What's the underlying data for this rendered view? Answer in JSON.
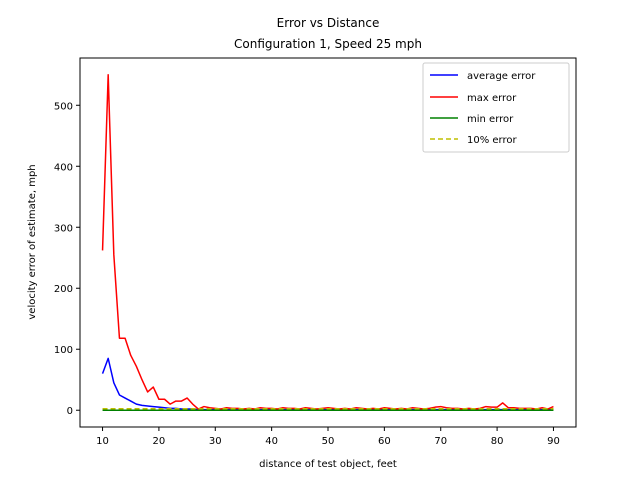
{
  "chart_data": {
    "type": "line",
    "title_line1": "Error vs Distance",
    "title_line2": "Configuration 1, Speed 25 mph",
    "xlabel": "distance of test object, feet",
    "ylabel": "velocity error of estimate, mph",
    "xlim": [
      6,
      94
    ],
    "ylim": [
      -27.5,
      577.5
    ],
    "xticks": [
      10,
      20,
      30,
      40,
      50,
      60,
      70,
      80,
      90
    ],
    "yticks": [
      0,
      100,
      200,
      300,
      400,
      500
    ],
    "grid": false,
    "legend_position": "top-right",
    "x": [
      10,
      11,
      12,
      13,
      14,
      15,
      16,
      17,
      18,
      19,
      20,
      21,
      22,
      23,
      24,
      25,
      26,
      27,
      28,
      29,
      30,
      31,
      32,
      33,
      34,
      35,
      36,
      37,
      38,
      39,
      40,
      41,
      42,
      43,
      44,
      45,
      46,
      47,
      48,
      49,
      50,
      51,
      52,
      53,
      54,
      55,
      56,
      57,
      58,
      59,
      60,
      61,
      62,
      63,
      64,
      65,
      66,
      67,
      68,
      69,
      70,
      71,
      72,
      73,
      74,
      75,
      76,
      77,
      78,
      79,
      80,
      81,
      82,
      83,
      84,
      85,
      86,
      87,
      88,
      89,
      90
    ],
    "series": [
      {
        "name": "average error",
        "color": "#0000ff",
        "dash": "solid",
        "values": [
          60,
          85,
          45,
          25,
          20,
          15,
          10,
          8,
          7,
          6,
          5,
          4,
          3,
          3,
          2,
          2,
          2,
          1,
          1,
          1,
          1,
          1,
          1,
          1,
          1,
          1,
          1,
          1,
          1,
          1,
          1,
          1,
          1,
          1,
          1,
          1,
          1,
          1,
          1,
          1,
          1,
          1,
          1,
          1,
          1,
          1,
          1,
          1,
          1,
          1,
          1,
          1,
          1,
          1,
          1,
          1,
          1,
          1,
          1,
          1,
          1,
          1,
          1,
          1,
          1,
          1,
          1,
          1,
          1,
          1,
          1,
          1,
          1,
          1,
          1,
          1,
          1,
          1,
          1,
          1,
          2
        ]
      },
      {
        "name": "max error",
        "color": "#ff0000",
        "dash": "solid",
        "values": [
          262,
          550,
          255,
          118,
          118,
          90,
          72,
          50,
          30,
          38,
          18,
          18,
          10,
          15,
          15,
          20,
          10,
          2,
          6,
          4,
          3,
          2,
          4,
          3,
          3,
          2,
          3,
          2,
          4,
          3,
          3,
          2,
          4,
          3,
          3,
          2,
          4,
          3,
          2,
          3,
          4,
          3,
          2,
          3,
          2,
          4,
          3,
          2,
          3,
          2,
          4,
          3,
          2,
          3,
          2,
          4,
          3,
          2,
          3,
          5,
          6,
          4,
          3,
          3,
          2,
          3,
          2,
          3,
          6,
          5,
          5,
          12,
          4,
          4,
          3,
          3,
          3,
          2,
          4,
          2,
          6
        ]
      },
      {
        "name": "min error",
        "color": "#008000",
        "dash": "solid",
        "values": [
          0,
          0,
          0,
          0,
          0,
          0,
          0,
          0,
          0,
          0,
          0,
          0,
          0,
          0,
          0,
          0,
          0,
          0,
          0,
          0,
          0,
          0,
          0,
          0,
          0,
          0,
          0,
          0,
          0,
          0,
          0,
          0,
          0,
          0,
          0,
          0,
          0,
          0,
          0,
          0,
          0,
          0,
          0,
          0,
          0,
          0,
          0,
          0,
          0,
          0,
          0,
          0,
          0,
          0,
          0,
          0,
          0,
          0,
          0,
          0,
          0,
          0,
          0,
          0,
          0,
          0,
          0,
          0,
          0,
          0,
          0,
          0,
          0,
          0,
          0,
          0,
          0,
          0,
          0,
          0,
          0
        ]
      },
      {
        "name": "10% error",
        "color": "#bfbf00",
        "dash": "dashed",
        "values": [
          2.5,
          2.5,
          2.5,
          2.5,
          2.5,
          2.5,
          2.5,
          2.5,
          2.5,
          2.5,
          2.5,
          2.5,
          2.5,
          2.5,
          2.5,
          2.5,
          2.5,
          2.5,
          2.5,
          2.5,
          2.5,
          2.5,
          2.5,
          2.5,
          2.5,
          2.5,
          2.5,
          2.5,
          2.5,
          2.5,
          2.5,
          2.5,
          2.5,
          2.5,
          2.5,
          2.5,
          2.5,
          2.5,
          2.5,
          2.5,
          2.5,
          2.5,
          2.5,
          2.5,
          2.5,
          2.5,
          2.5,
          2.5,
          2.5,
          2.5,
          2.5,
          2.5,
          2.5,
          2.5,
          2.5,
          2.5,
          2.5,
          2.5,
          2.5,
          2.5,
          2.5,
          2.5,
          2.5,
          2.5,
          2.5,
          2.5,
          2.5,
          2.5,
          2.5,
          2.5,
          2.5,
          2.5,
          2.5,
          2.5,
          2.5,
          2.5,
          2.5,
          2.5,
          2.5,
          2.5,
          2.5
        ]
      }
    ]
  }
}
